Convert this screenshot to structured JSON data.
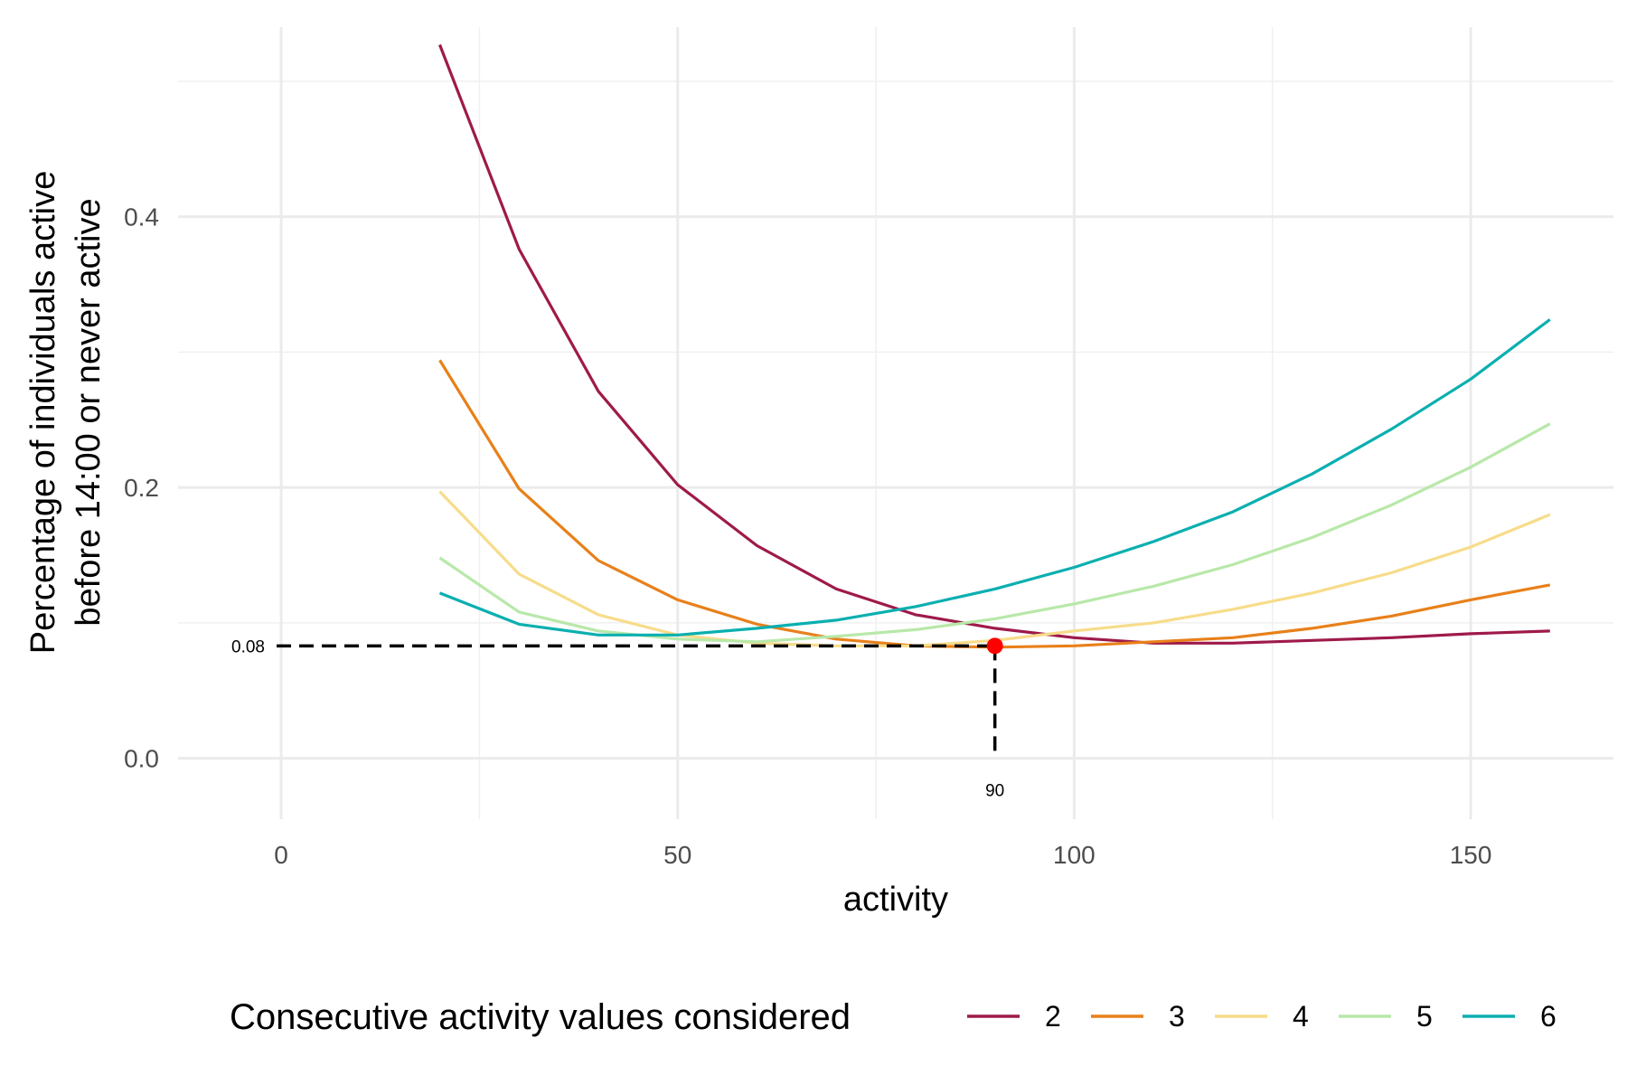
{
  "chart_data": {
    "type": "line",
    "xlabel": "activity",
    "ylabel_lines": [
      "Percentage of individuals active",
      "before 14:00 or never active"
    ],
    "xlim": [
      -13,
      168
    ],
    "ylim": [
      -0.045,
      0.54
    ],
    "x_ticks": [
      0,
      50,
      100,
      150
    ],
    "x_tick_labels": [
      "0",
      "50",
      "100",
      "150"
    ],
    "y_ticks": [
      0.0,
      0.2,
      0.4
    ],
    "y_tick_labels": [
      "0.0",
      "0.2",
      "0.4"
    ],
    "grid": true,
    "legend": {
      "title": "Consecutive activity values considered",
      "placement": "bottom"
    },
    "x": [
      20,
      30,
      40,
      50,
      60,
      70,
      80,
      90,
      100,
      110,
      120,
      130,
      140,
      150,
      160
    ],
    "series": [
      {
        "name": "2",
        "color": "#9E1A4A",
        "values": [
          0.527,
          0.376,
          0.271,
          0.202,
          0.157,
          0.125,
          0.106,
          0.096,
          0.089,
          0.085,
          0.085,
          0.087,
          0.089,
          0.092,
          0.094
        ]
      },
      {
        "name": "3",
        "color": "#E8801A",
        "values": [
          0.294,
          0.199,
          0.146,
          0.117,
          0.099,
          0.088,
          0.083,
          0.082,
          0.083,
          0.086,
          0.089,
          0.096,
          0.105,
          0.117,
          0.128
        ]
      },
      {
        "name": "4",
        "color": "#F7DC8A",
        "values": [
          0.197,
          0.136,
          0.106,
          0.091,
          0.085,
          0.083,
          0.083,
          0.087,
          0.094,
          0.1,
          0.11,
          0.122,
          0.137,
          0.156,
          0.18
        ]
      },
      {
        "name": "5",
        "color": "#B8E8A9",
        "values": [
          0.148,
          0.108,
          0.094,
          0.088,
          0.086,
          0.09,
          0.095,
          0.103,
          0.114,
          0.127,
          0.143,
          0.163,
          0.187,
          0.215,
          0.247
        ]
      },
      {
        "name": "6",
        "color": "#0BAFB0",
        "values": [
          0.122,
          0.099,
          0.091,
          0.091,
          0.096,
          0.102,
          0.112,
          0.125,
          0.141,
          0.16,
          0.182,
          0.21,
          0.243,
          0.28,
          0.324
        ]
      }
    ],
    "annotation": {
      "point": {
        "x": 90,
        "y": 0.083,
        "color": "#FF0000"
      },
      "x_label": "90",
      "y_label": "0.08"
    }
  }
}
